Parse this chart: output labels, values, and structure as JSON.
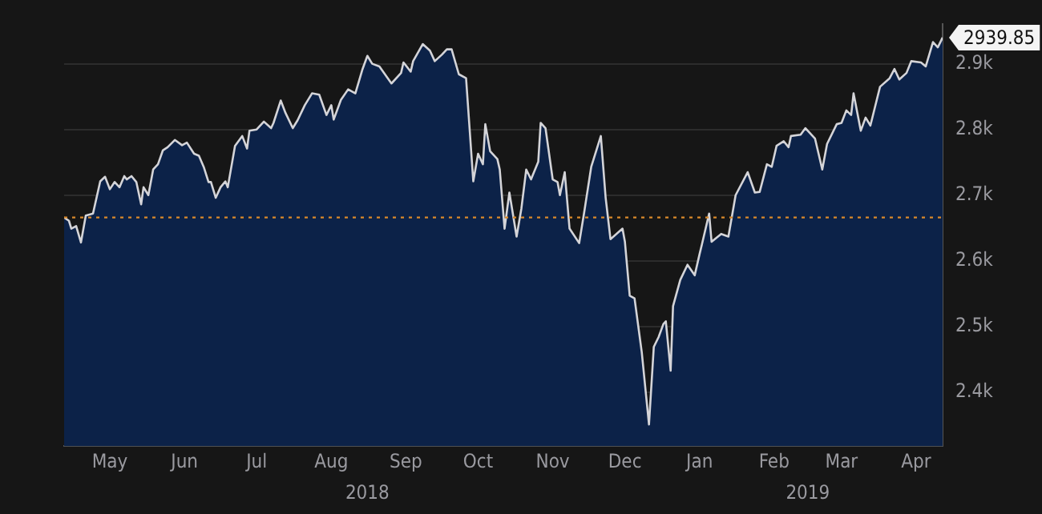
{
  "chart_data": {
    "type": "area",
    "x": [
      "2018-04-26",
      "2018-04-28",
      "2018-04-29",
      "2018-05-01",
      "2018-05-03",
      "2018-05-05",
      "2018-05-08",
      "2018-05-11",
      "2018-05-13",
      "2018-05-15",
      "2018-05-17",
      "2018-05-19",
      "2018-05-21",
      "2018-05-22",
      "2018-05-24",
      "2018-05-26",
      "2018-05-28",
      "2018-05-29",
      "2018-05-31",
      "2018-06-02",
      "2018-06-04",
      "2018-06-06",
      "2018-06-08",
      "2018-06-11",
      "2018-06-14",
      "2018-06-16",
      "2018-06-19",
      "2018-06-21",
      "2018-06-23",
      "2018-06-25",
      "2018-06-26",
      "2018-06-28",
      "2018-06-30",
      "2018-07-02",
      "2018-07-03",
      "2018-07-06",
      "2018-07-09",
      "2018-07-11",
      "2018-07-12",
      "2018-07-15",
      "2018-07-18",
      "2018-07-21",
      "2018-07-22",
      "2018-07-25",
      "2018-07-27",
      "2018-07-30",
      "2018-08-01",
      "2018-08-04",
      "2018-08-07",
      "2018-08-10",
      "2018-08-13",
      "2018-08-15",
      "2018-08-16",
      "2018-08-19",
      "2018-08-22",
      "2018-08-25",
      "2018-08-28",
      "2018-08-30",
      "2018-09-01",
      "2018-09-04",
      "2018-09-09",
      "2018-09-13",
      "2018-09-14",
      "2018-09-17",
      "2018-09-18",
      "2018-09-22",
      "2018-09-25",
      "2018-09-27",
      "2018-09-30",
      "2018-10-02",
      "2018-10-04",
      "2018-10-07",
      "2018-10-10",
      "2018-10-13",
      "2018-10-15",
      "2018-10-17",
      "2018-10-18",
      "2018-10-20",
      "2018-10-23",
      "2018-10-24",
      "2018-10-26",
      "2018-10-28",
      "2018-10-31",
      "2018-11-02",
      "2018-11-04",
      "2018-11-06",
      "2018-11-09",
      "2018-11-10",
      "2018-11-12",
      "2018-11-15",
      "2018-11-17",
      "2018-11-18",
      "2018-11-20",
      "2018-11-22",
      "2018-11-26",
      "2018-11-28",
      "2018-12-01",
      "2018-12-05",
      "2018-12-07",
      "2018-12-09",
      "2018-12-14",
      "2018-12-15",
      "2018-12-17",
      "2018-12-19",
      "2018-12-22",
      "2018-12-25",
      "2018-12-27",
      "2018-12-29",
      "2018-12-31",
      "2019-01-01",
      "2019-01-03",
      "2019-01-04",
      "2019-01-07",
      "2019-01-10",
      "2019-01-13",
      "2019-01-15",
      "2019-01-16",
      "2019-01-19",
      "2019-01-20",
      "2019-01-24",
      "2019-01-27",
      "2019-01-30",
      "2019-02-04",
      "2019-02-07",
      "2019-02-09",
      "2019-02-12",
      "2019-02-14",
      "2019-02-16",
      "2019-02-19",
      "2019-02-21",
      "2019-02-22",
      "2019-02-26",
      "2019-02-28",
      "2019-03-04",
      "2019-03-07",
      "2019-03-09",
      "2019-03-13",
      "2019-03-15",
      "2019-03-17",
      "2019-03-19",
      "2019-03-20",
      "2019-03-23",
      "2019-03-25",
      "2019-03-27",
      "2019-03-31",
      "2019-04-04",
      "2019-04-06",
      "2019-04-08",
      "2019-04-11",
      "2019-04-13",
      "2019-04-17",
      "2019-04-19",
      "2019-04-22",
      "2019-04-24",
      "2019-04-26"
    ],
    "series": [
      {
        "color": "#d4d4d8",
        "values": [
          2666,
          2661,
          2649,
          2653,
          2628,
          2669,
          2672,
          2721,
          2728,
          2709,
          2720,
          2712,
          2729,
          2724,
          2729,
          2720,
          2686,
          2712,
          2700,
          2739,
          2747,
          2768,
          2773,
          2784,
          2776,
          2780,
          2763,
          2760,
          2743,
          2720,
          2720,
          2696,
          2712,
          2721,
          2712,
          2775,
          2790,
          2771,
          2798,
          2800,
          2812,
          2802,
          2810,
          2844,
          2825,
          2802,
          2814,
          2837,
          2855,
          2853,
          2822,
          2837,
          2815,
          2845,
          2861,
          2855,
          2892,
          2912,
          2900,
          2896,
          2870,
          2886,
          2902,
          2888,
          2904,
          2930,
          2920,
          2904,
          2914,
          2922,
          2922,
          2884,
          2878,
          2721,
          2763,
          2747,
          2808,
          2767,
          2755,
          2739,
          2649,
          2704,
          2637,
          2680,
          2739,
          2724,
          2751,
          2810,
          2802,
          2724,
          2720,
          2700,
          2735,
          2649,
          2627,
          2672,
          2743,
          2790,
          2696,
          2633,
          2649,
          2629,
          2547,
          2543,
          2461,
          2351,
          2469,
          2484,
          2504,
          2508,
          2433,
          2531,
          2571,
          2594,
          2578,
          2610,
          2625,
          2672,
          2629,
          2641,
          2637,
          2700,
          2735,
          2704,
          2705,
          2747,
          2743,
          2775,
          2782,
          2773,
          2790,
          2792,
          2802,
          2786,
          2739,
          2778,
          2808,
          2810,
          2829,
          2822,
          2855,
          2798,
          2818,
          2806,
          2865,
          2878,
          2892,
          2876,
          2886,
          2904,
          2902,
          2896,
          2933,
          2925,
          2939.85
        ]
      }
    ],
    "xlim": [
      "2018-04-26",
      "2019-04-26"
    ],
    "xticks": [
      {
        "value": "2018-05-15",
        "label": "May"
      },
      {
        "value": "2018-06-15",
        "label": "Jun"
      },
      {
        "value": "2018-07-15",
        "label": "Jul"
      },
      {
        "value": "2018-08-15",
        "label": "Aug"
      },
      {
        "value": "2018-09-15",
        "label": "Sep"
      },
      {
        "value": "2018-10-15",
        "label": "Oct"
      },
      {
        "value": "2018-11-15",
        "label": "Nov"
      },
      {
        "value": "2018-12-15",
        "label": "Dec"
      },
      {
        "value": "2019-01-15",
        "label": "Jan"
      },
      {
        "value": "2019-02-15",
        "label": "Feb"
      },
      {
        "value": "2019-03-15",
        "label": "Mar"
      },
      {
        "value": "2019-04-15",
        "label": "Apr"
      }
    ],
    "ylim": [
      2318,
      2960
    ],
    "yticks": [
      {
        "value": 2400,
        "label": "2.4k"
      },
      {
        "value": 2500,
        "label": "2.5k"
      },
      {
        "value": 2600,
        "label": "2.6k"
      },
      {
        "value": 2700,
        "label": "2.7k"
      },
      {
        "value": 2800,
        "label": "2.8k"
      },
      {
        "value": 2900,
        "label": "2.9k"
      }
    ],
    "grid": "y",
    "legend": false,
    "ref_lines": [
      {
        "axis": "y",
        "value": 2666,
        "color": "#d9892b",
        "line_style": "dotted"
      }
    ],
    "annotations": [
      "2018",
      "2019",
      {
        "text": "2939.85",
        "x": "2019-04-26",
        "y": 2939.85
      }
    ]
  }
}
